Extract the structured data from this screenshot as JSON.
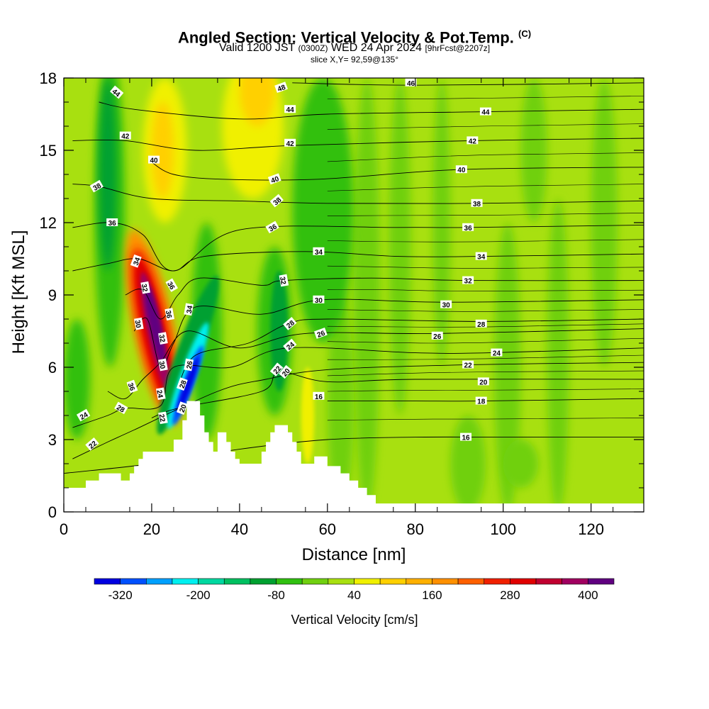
{
  "title": {
    "main": "Angled Section: Vertical Velocity & Pot.Temp.",
    "tag": "(C)",
    "valid_a": "Valid 1200 JST",
    "valid_utc": "(0300Z)",
    "valid_b": "WED 24 Apr 2024",
    "forecast": "[9hrFcst@2207z]",
    "slice": "slice X,Y= 92,59@135°"
  },
  "chart_data": {
    "type": "heatmap",
    "xlabel": "Distance [nm]",
    "ylabel": "Height [Kft MSL]",
    "xlim": [
      0,
      132
    ],
    "ylim": [
      0,
      18
    ],
    "x_ticks": [
      0,
      20,
      40,
      60,
      80,
      100,
      120
    ],
    "x_tick_labels": [
      "0",
      "20",
      "40",
      "60",
      "80",
      "100",
      "120"
    ],
    "y_ticks": [
      0,
      3,
      6,
      9,
      12,
      15,
      18
    ],
    "y_tick_labels": [
      "0",
      "3",
      "6",
      "9",
      "12",
      "15",
      "18"
    ],
    "colorbar": {
      "title": "Vertical Velocity [cm/s]",
      "range": [
        -360,
        440
      ],
      "colors": [
        "#0000e0",
        "#0050ff",
        "#00a0ff",
        "#00f0f0",
        "#00d8a0",
        "#00c060",
        "#00a030",
        "#30c010",
        "#70d010",
        "#a8e010",
        "#f0f000",
        "#ffd000",
        "#ffb000",
        "#ff9000",
        "#ff6000",
        "#f02000",
        "#e00000",
        "#c00030",
        "#a00060",
        "#600080"
      ],
      "labels": [
        {
          "value": -320,
          "text": "-320"
        },
        {
          "value": -200,
          "text": "-200"
        },
        {
          "value": -80,
          "text": "-80"
        },
        {
          "value": 40,
          "text": "40"
        },
        {
          "value": 160,
          "text": "160"
        },
        {
          "value": 280,
          "text": "280"
        },
        {
          "value": 400,
          "text": "400"
        }
      ]
    },
    "field_regions": [
      {
        "kind": "updraft-core",
        "x_range": [
          17,
          25
        ],
        "y_range": [
          3.5,
          11.5
        ],
        "max_cms": 400,
        "colors": [
          "#ff9000",
          "#e00000",
          "#600080"
        ]
      },
      {
        "kind": "downdraft-core",
        "x_range": [
          26,
          31
        ],
        "y_range": [
          3,
          10.5
        ],
        "min_cms": -320,
        "colors": [
          "#00a030",
          "#00f0f0",
          "#0000e0"
        ]
      },
      {
        "kind": "upper-updraft",
        "x_range": [
          36,
          50
        ],
        "y_range": [
          13.5,
          18
        ],
        "value_cms": 120,
        "colors": [
          "#f0f000",
          "#ffd000"
        ]
      },
      {
        "kind": "downdraft",
        "x_range": [
          7,
          14
        ],
        "y_range": [
          6,
          18
        ],
        "value_cms": -60,
        "colors": [
          "#00a030",
          "#30c010"
        ]
      },
      {
        "kind": "wave-downdraft",
        "x_range": [
          47,
          51
        ],
        "y_range": [
          5,
          11
        ],
        "value_cms": -80,
        "colors": [
          "#00a030"
        ]
      }
    ],
    "theta_contours": [
      {
        "value": 16,
        "label": "16",
        "points": [
          [
            0,
            1.6
          ],
          [
            20,
            2
          ],
          [
            40,
            2.6
          ],
          [
            60,
            3
          ],
          [
            80,
            3.1
          ],
          [
            100,
            3.1
          ],
          [
            132,
            3.1
          ]
        ],
        "label_at": [
          91.5,
          3.1
        ]
      },
      {
        "value": 18,
        "label": "18",
        "points": [
          [
            60,
            4.6
          ],
          [
            80,
            4.6
          ],
          [
            95,
            4.6
          ],
          [
            132,
            4.7
          ]
        ],
        "label_at": [
          95,
          4.6
        ]
      },
      {
        "value": 20,
        "label": "20",
        "points": [
          [
            20,
            3.9
          ],
          [
            26,
            4.3
          ],
          [
            45,
            5
          ],
          [
            49,
            5.8
          ],
          [
            60,
            5.4
          ],
          [
            80,
            5.5
          ],
          [
            132,
            5.5
          ]
        ],
        "label_at": [
          95.5,
          5.4
        ]
      },
      {
        "value": 22,
        "label": "22",
        "points": [
          [
            2,
            2.2
          ],
          [
            10,
            2.9
          ],
          [
            16,
            3.4
          ],
          [
            35,
            5
          ],
          [
            46,
            5.5
          ],
          [
            60,
            5.9
          ],
          [
            91,
            6.1
          ],
          [
            132,
            6.2
          ]
        ],
        "label_at": [
          92,
          6.1
        ]
      },
      {
        "value": 24,
        "label": "24",
        "points": [
          [
            2,
            3.5
          ],
          [
            10,
            4
          ],
          [
            14,
            4.3
          ],
          [
            22,
            4.4
          ],
          [
            25,
            6
          ],
          [
            38,
            6
          ],
          [
            51,
            6.8
          ],
          [
            80,
            6.6
          ],
          [
            97,
            6.6
          ],
          [
            132,
            6.8
          ]
        ],
        "label_at": [
          98.5,
          6.6
        ]
      },
      {
        "value": 26,
        "label": "26",
        "points": [
          [
            10,
            5
          ],
          [
            14,
            4.7
          ],
          [
            18,
            5.5
          ],
          [
            22,
            6.2
          ],
          [
            28,
            7.5
          ],
          [
            40,
            6.8
          ],
          [
            55,
            7.4
          ],
          [
            85,
            7.4
          ],
          [
            132,
            7.6
          ]
        ],
        "label_at": [
          85,
          7.3
        ]
      },
      {
        "value": 28,
        "label": "28",
        "points": [
          [
            26,
            5.2
          ],
          [
            30,
            6.5
          ],
          [
            42,
            7
          ],
          [
            51,
            7.8
          ],
          [
            60,
            8
          ],
          [
            95,
            7.9
          ],
          [
            132,
            8
          ]
        ],
        "label_at": [
          95,
          7.8
        ]
      },
      {
        "value": 30,
        "label": "30",
        "points": [
          [
            16,
            7.5
          ],
          [
            19,
            8
          ],
          [
            22,
            6
          ],
          [
            25,
            7
          ],
          [
            30,
            8.5
          ],
          [
            45,
            8.2
          ],
          [
            59,
            8.8
          ],
          [
            87,
            8.7
          ],
          [
            132,
            8.8
          ]
        ],
        "label_at": [
          87,
          8.6
        ]
      },
      {
        "value": 32,
        "label": "32",
        "points": [
          [
            14,
            9
          ],
          [
            18,
            9.2
          ],
          [
            22,
            8
          ],
          [
            26,
            9
          ],
          [
            31,
            9.7
          ],
          [
            45,
            9.4
          ],
          [
            50,
            9.6
          ],
          [
            70,
            9.7
          ],
          [
            92,
            9.6
          ],
          [
            132,
            9.6
          ]
        ],
        "label_at": [
          92,
          9.6
        ]
      },
      {
        "value": 34,
        "label": "34",
        "points": [
          [
            2,
            10
          ],
          [
            10,
            10.3
          ],
          [
            17,
            10.5
          ],
          [
            25,
            10
          ],
          [
            32,
            10.6
          ],
          [
            55,
            10.8
          ],
          [
            76,
            10.6
          ],
          [
            95,
            10.6
          ],
          [
            132,
            10.7
          ]
        ],
        "label_at": [
          95,
          10.6
        ]
      },
      {
        "value": 36,
        "label": "36",
        "points": [
          [
            2,
            11.8
          ],
          [
            11,
            12
          ],
          [
            18,
            11.5
          ],
          [
            25,
            10
          ],
          [
            40,
            11.7
          ],
          [
            76,
            11.8
          ],
          [
            92,
            11.8
          ],
          [
            132,
            11.9
          ]
        ],
        "label_at": [
          92,
          11.8
        ]
      },
      {
        "value": 38,
        "label": "38",
        "points": [
          [
            2,
            13.6
          ],
          [
            8,
            13.5
          ],
          [
            20,
            13
          ],
          [
            40,
            12.9
          ],
          [
            60,
            12.8
          ],
          [
            94,
            12.8
          ],
          [
            132,
            12.9
          ]
        ],
        "label_at": [
          94,
          12.8
        ]
      },
      {
        "value": 40,
        "label": "40",
        "points": [
          [
            20,
            14.5
          ],
          [
            25,
            14
          ],
          [
            36,
            13.8
          ],
          [
            58,
            13.8
          ],
          [
            90,
            14.2
          ],
          [
            132,
            14.3
          ]
        ],
        "label_at": [
          90.5,
          14.2
        ]
      },
      {
        "value": 42,
        "label": "42",
        "points": [
          [
            2,
            15.4
          ],
          [
            14,
            15.4
          ],
          [
            30,
            15
          ],
          [
            52,
            15.2
          ],
          [
            93,
            15.4
          ],
          [
            132,
            15.5
          ]
        ],
        "label_at": [
          93,
          15.4
        ]
      },
      {
        "value": 44,
        "label": "44",
        "points": [
          [
            8,
            17
          ],
          [
            16,
            16.7
          ],
          [
            40,
            16.3
          ],
          [
            60,
            16.5
          ],
          [
            96,
            16.6
          ],
          [
            132,
            16.7
          ]
        ],
        "label_at": [
          96,
          16.6
        ]
      },
      {
        "value": 46,
        "label": "46",
        "points": [
          [
            52,
            17.8
          ],
          [
            80,
            17.7
          ],
          [
            132,
            17.8
          ]
        ],
        "label_at": [
          79,
          17.8
        ]
      }
    ],
    "extra_contour_labels": [
      {
        "text": "44",
        "at": [
          12,
          17.4
        ],
        "rotate": 40
      },
      {
        "text": "42",
        "at": [
          14,
          15.6
        ],
        "rotate": 0
      },
      {
        "text": "40",
        "at": [
          20.5,
          14.6
        ],
        "rotate": 0
      },
      {
        "text": "38",
        "at": [
          7.5,
          13.5
        ],
        "rotate": -30
      },
      {
        "text": "36",
        "at": [
          11,
          12
        ],
        "rotate": 0
      },
      {
        "text": "34",
        "at": [
          16.5,
          10.4
        ],
        "rotate": -70
      },
      {
        "text": "32",
        "at": [
          18.5,
          9.3
        ],
        "rotate": 80
      },
      {
        "text": "30",
        "at": [
          17,
          7.8
        ],
        "rotate": 80
      },
      {
        "text": "36",
        "at": [
          24.5,
          9.4
        ],
        "rotate": 60
      },
      {
        "text": "36",
        "at": [
          24,
          8.2
        ],
        "rotate": 80
      },
      {
        "text": "32",
        "at": [
          22.5,
          7.2
        ],
        "rotate": 80
      },
      {
        "text": "30",
        "at": [
          22.5,
          6.1
        ],
        "rotate": 80
      },
      {
        "text": "24",
        "at": [
          22,
          4.9
        ],
        "rotate": 80
      },
      {
        "text": "22",
        "at": [
          22.5,
          3.9
        ],
        "rotate": 80
      },
      {
        "text": "34",
        "at": [
          28.5,
          8.4
        ],
        "rotate": -80
      },
      {
        "text": "26",
        "at": [
          28.5,
          6.1
        ],
        "rotate": -80
      },
      {
        "text": "28",
        "at": [
          27,
          5.3
        ],
        "rotate": -70
      },
      {
        "text": "20",
        "at": [
          27,
          4.3
        ],
        "rotate": -70
      },
      {
        "text": "36",
        "at": [
          15.5,
          5.2
        ],
        "rotate": 70
      },
      {
        "text": "28",
        "at": [
          13,
          4.3
        ],
        "rotate": 30
      },
      {
        "text": "24",
        "at": [
          4.5,
          4
        ],
        "rotate": -30
      },
      {
        "text": "22",
        "at": [
          6.5,
          2.8
        ],
        "rotate": -40
      },
      {
        "text": "48",
        "at": [
          49.5,
          17.6
        ],
        "rotate": -20
      },
      {
        "text": "44",
        "at": [
          51.5,
          16.7
        ],
        "rotate": 0
      },
      {
        "text": "42",
        "at": [
          51.5,
          15.3
        ],
        "rotate": 0
      },
      {
        "text": "40",
        "at": [
          48,
          13.8
        ],
        "rotate": -20
      },
      {
        "text": "38",
        "at": [
          48.5,
          12.9
        ],
        "rotate": -40
      },
      {
        "text": "36",
        "at": [
          47.5,
          11.8
        ],
        "rotate": -30
      },
      {
        "text": "34",
        "at": [
          58,
          10.8
        ],
        "rotate": 0
      },
      {
        "text": "32",
        "at": [
          50,
          9.6
        ],
        "rotate": 80
      },
      {
        "text": "30",
        "at": [
          58,
          8.8
        ],
        "rotate": 0
      },
      {
        "text": "28",
        "at": [
          51.5,
          7.8
        ],
        "rotate": -40
      },
      {
        "text": "26",
        "at": [
          58.5,
          7.4
        ],
        "rotate": -20
      },
      {
        "text": "24",
        "at": [
          51.5,
          6.9
        ],
        "rotate": -40
      },
      {
        "text": "22",
        "at": [
          48.5,
          5.9
        ],
        "rotate": -50
      },
      {
        "text": "20",
        "at": [
          50.5,
          5.8
        ],
        "rotate": -50
      },
      {
        "text": "16",
        "at": [
          58,
          4.8
        ],
        "rotate": 0
      }
    ],
    "terrain_profile": [
      [
        0,
        1
      ],
      [
        5,
        1
      ],
      [
        5,
        1.3
      ],
      [
        8,
        1.3
      ],
      [
        8,
        1.6
      ],
      [
        13,
        1.6
      ],
      [
        13,
        1.3
      ],
      [
        15,
        1.3
      ],
      [
        15,
        1.6
      ],
      [
        16,
        1.6
      ],
      [
        16,
        1.9
      ],
      [
        17,
        1.9
      ],
      [
        17,
        2.2
      ],
      [
        18,
        2.2
      ],
      [
        18,
        2.5
      ],
      [
        25,
        2.5
      ],
      [
        25,
        3
      ],
      [
        27,
        3
      ],
      [
        27,
        3.8
      ],
      [
        28,
        3.8
      ],
      [
        28,
        4.6
      ],
      [
        31,
        4.6
      ],
      [
        31,
        4
      ],
      [
        32,
        4
      ],
      [
        32,
        3.3
      ],
      [
        33,
        3.3
      ],
      [
        33,
        2.9
      ],
      [
        34,
        2.9
      ],
      [
        34,
        2.5
      ],
      [
        35,
        2.5
      ],
      [
        35,
        3.3
      ],
      [
        37,
        3.3
      ],
      [
        37,
        2.9
      ],
      [
        38,
        2.9
      ],
      [
        38,
        2.5
      ],
      [
        39,
        2.5
      ],
      [
        39,
        2.2
      ],
      [
        40,
        2.2
      ],
      [
        40,
        2
      ],
      [
        45,
        2
      ],
      [
        45,
        2.5
      ],
      [
        46,
        2.5
      ],
      [
        46,
        2.9
      ],
      [
        47,
        2.9
      ],
      [
        47,
        3.3
      ],
      [
        48,
        3.3
      ],
      [
        48,
        3.6
      ],
      [
        51,
        3.6
      ],
      [
        51,
        3.3
      ],
      [
        52,
        3.3
      ],
      [
        52,
        2.9
      ],
      [
        53,
        2.9
      ],
      [
        53,
        2.5
      ],
      [
        54,
        2.5
      ],
      [
        54,
        2
      ],
      [
        57,
        2
      ],
      [
        57,
        2.3
      ],
      [
        60,
        2.3
      ],
      [
        60,
        1.9
      ],
      [
        63,
        1.9
      ],
      [
        63,
        1.6
      ],
      [
        65,
        1.6
      ],
      [
        65,
        1.3
      ],
      [
        67,
        1.3
      ],
      [
        67,
        1
      ],
      [
        69,
        1
      ],
      [
        69,
        0.7
      ],
      [
        71,
        0.7
      ],
      [
        71,
        0.35
      ],
      [
        132,
        0.35
      ]
    ]
  }
}
